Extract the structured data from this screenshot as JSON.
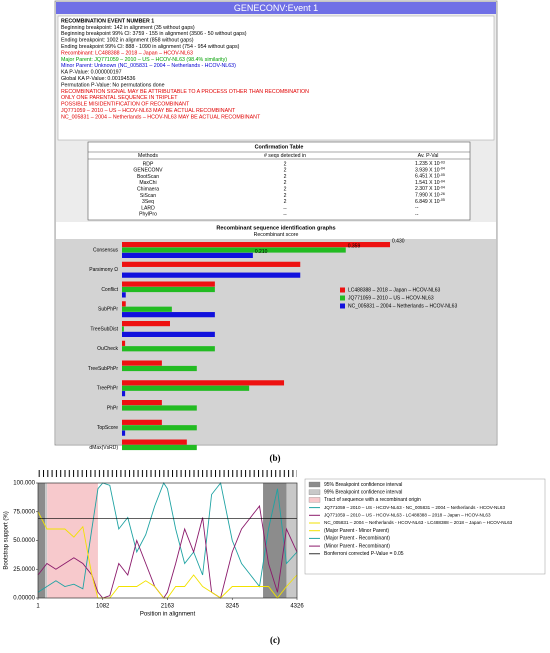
{
  "window": {
    "title": "GENECONV:Event 1",
    "info_lines": [
      {
        "text": "RECOMBINATION EVENT NUMBER 1",
        "color": "#000000",
        "bold": true
      },
      {
        "text": "Beginning breakpoint: 142 in alignment (35 without gaps)",
        "color": "#000000"
      },
      {
        "text": "Beginning breakpoint 99% CI: 3759 - 155 in alignment (3506 - 50 without gaps)",
        "color": "#000000"
      },
      {
        "text": "Ending breakpoint: 1002 in alignment (858 without gaps)",
        "color": "#000000"
      },
      {
        "text": "Ending breakpoint 99% CI: 888 - 1090 in alignment (754 - 954 without gaps)",
        "color": "#000000"
      },
      {
        "text": "Recombinant: LC488388 – 2018 – Japan – HCOV-NL63",
        "color": "#e00000"
      },
      {
        "text": "Major Parent: JQ771059 – 2010 – US – HCOV-NL63 (98.4% similarity)",
        "color": "#00a000"
      },
      {
        "text": "Minor Parent: Unknown (NC_005831 – 2004 – Netherlands - HCOV-NL63)",
        "color": "#0000d0"
      },
      {
        "text": "KA P-Value: 0.000000197",
        "color": "#000000"
      },
      {
        "text": "Global KA P-Value: 0.00194536",
        "color": "#000000"
      },
      {
        "text": "Permutation P-Value: No permutations done",
        "color": "#000000"
      },
      {
        "text": "RECOMBINATION SIGNAL MAY BE ATTRIBUTABLE TO A PROCESS OTHER THAN RECOMBINATION",
        "color": "#e00000"
      },
      {
        "text": "ONLY ONE PARENTAL SEQUENCE IN TRIPLET",
        "color": "#e00000"
      },
      {
        "text": "POSSIBLE MISIDENTIFICATION OF RECOMBINANT",
        "color": "#e00000"
      },
      {
        "text": "JQ771059 – 2010 – US – HCOV-NL63 MAY BE ACTUAL RECOMBINANT",
        "color": "#e00000"
      },
      {
        "text": "NC_005831 – 2004 – Netherlands – HCOV-NL63 MAY BE ACTUAL RECOMBINANT",
        "color": "#e00000"
      }
    ],
    "confirmation_table": {
      "title": "Confirmation Table",
      "headers": [
        "Methods",
        "# seqs detected in",
        "Av. P-Val"
      ],
      "rows": [
        {
          "method": "RDP",
          "count": 2,
          "p": "1.235 X 10",
          "exp": "-03"
        },
        {
          "method": "GENECONV",
          "count": 2,
          "p": "3.939 X 10",
          "exp": "-04"
        },
        {
          "method": "BootScan",
          "count": 2,
          "p": "6.451 X 10",
          "exp": "-05"
        },
        {
          "method": "MaxChi",
          "count": 2,
          "p": "1.541 X 10",
          "exp": "-04"
        },
        {
          "method": "Chimaera",
          "count": 2,
          "p": "2.307 X 10",
          "exp": "-04"
        },
        {
          "method": "SiScan",
          "count": 2,
          "p": "7.990 X 10",
          "exp": "-26"
        },
        {
          "method": "3Seq",
          "count": 2,
          "p": "6.849 X 10",
          "exp": "-05"
        },
        {
          "method": "LARD",
          "count": "--",
          "p": "--"
        },
        {
          "method": "PhylPro",
          "count": "--",
          "p": "--"
        }
      ]
    }
  },
  "chart_data": [
    {
      "type": "bar",
      "orientation": "horizontal",
      "title": "Recombinant sequence identification graphs",
      "subtitle": "Recombinant score",
      "categories": [
        "Consensus",
        "Parsimony Ω",
        "Conflict",
        "SubPhPr",
        "TreeSubDist",
        "OuCheck",
        "TreeSubPhPr",
        "TreePhPr",
        "PhPr",
        "TopScore",
        "dMax(VsRD)"
      ],
      "series": [
        {
          "name": "LC488388 – 2018 – Japan – HCOV-NL63",
          "color": "#ee1111",
          "values": [
            0.43,
            0.286,
            0.149,
            0.006,
            0.077,
            0.005,
            0.064,
            0.26,
            0.064,
            0.064,
            0.104
          ],
          "value_labels": [
            "0.430",
            null,
            null,
            null,
            null,
            null,
            null,
            null,
            null,
            null,
            null
          ]
        },
        {
          "name": "JQ771059 – 2010 – US – HCOV-NL63",
          "color": "#22bb22",
          "values": [
            0.359,
            0,
            0.149,
            0.08,
            0.003,
            0.149,
            0.12,
            0.204,
            0.12,
            0.12,
            0.12
          ],
          "value_labels": [
            "0.359",
            null,
            null,
            null,
            null,
            null,
            null,
            null,
            null,
            null,
            null
          ]
        },
        {
          "name": "NC_005831 – 2004 – Netherlands – HCOV-NL63",
          "color": "#1111dd",
          "values": [
            0.21,
            0.286,
            0.006,
            0.149,
            0.149,
            0,
            0,
            0.005,
            0,
            0.005,
            0
          ],
          "value_labels": [
            "0.210",
            null,
            null,
            null,
            null,
            null,
            null,
            null,
            null,
            null,
            null
          ]
        }
      ]
    },
    {
      "type": "line",
      "xlabel": "Position in alignment",
      "ylabel": "Bootstrap support (%)",
      "x": [
        1,
        150,
        300,
        450,
        600,
        750,
        900,
        1002,
        1082,
        1200,
        1350,
        1500,
        1650,
        1800,
        1950,
        2100,
        2163,
        2300,
        2450,
        2600,
        2750,
        2900,
        3050,
        3245,
        3400,
        3550,
        3700,
        3850,
        4000,
        4150,
        4326
      ],
      "xlim": [
        1,
        4326
      ],
      "xticks": [
        1,
        1082,
        2163,
        3245,
        4326
      ],
      "ylim": [
        0,
        100
      ],
      "yticks": [
        {
          "value": 0,
          "label": "0.00000"
        },
        {
          "value": 25,
          "label": "25.0000"
        },
        {
          "value": 50,
          "label": "50.0000"
        },
        {
          "value": 75,
          "label": "75.0000"
        },
        {
          "value": 100,
          "label": "100.000"
        }
      ],
      "regions": [
        {
          "label": "95% Breakpoint confidence interval",
          "color": "#8c8c8c",
          "spans": [
            [
              1,
              120
            ],
            [
              3759,
              4150
            ]
          ]
        },
        {
          "label": "99% Breakpoint confidence interval",
          "color": "#c8c8c8",
          "spans": [
            [
              120,
              155
            ],
            [
              4150,
              4326
            ]
          ]
        },
        {
          "label": "Tract of sequence with a recombinant origin",
          "color": "#f7c9cc",
          "spans": [
            [
              155,
              1002
            ]
          ]
        }
      ],
      "series": [
        {
          "name": "JQ771059 – 2010 – US - HCOV-NL63 - NC_005831 – 2004 – Netherlands - HCOV-NL63",
          "color": "#1fa3a3",
          "values": [
            5,
            10,
            15,
            10,
            12,
            8,
            60,
            95,
            100,
            98,
            60,
            70,
            40,
            55,
            80,
            100,
            95,
            60,
            30,
            40,
            20,
            90,
            100,
            50,
            30,
            20,
            10,
            60,
            95,
            30,
            40
          ]
        },
        {
          "name": "JQ771059 – 2010 – US - HCOV-NL63 - LC488388 – 2018 – Japan – HCOV-NL63",
          "color": "#8b1a6b",
          "values": [
            20,
            30,
            25,
            30,
            35,
            30,
            20,
            5,
            0,
            2,
            30,
            20,
            50,
            30,
            10,
            0,
            5,
            30,
            60,
            40,
            70,
            5,
            0,
            40,
            60,
            70,
            80,
            30,
            5,
            60,
            40
          ]
        },
        {
          "name": "NC_005831 – 2004 – Netherlands - HCOV-NL63 - LC488388 – 2018 – Japan – HCOV-NL63",
          "color": "#f2e200",
          "values": [
            75,
            60,
            60,
            60,
            53,
            62,
            20,
            0,
            0,
            0,
            10,
            10,
            10,
            15,
            10,
            0,
            0,
            10,
            10,
            20,
            10,
            5,
            0,
            10,
            10,
            10,
            10,
            10,
            0,
            10,
            20
          ]
        }
      ],
      "legend_notes": [
        {
          "label": "(Major Parent - Minor Parent)",
          "color": "#f2e200"
        },
        {
          "label": "(Major Parent - Recombinant)",
          "color": "#1fa3a3"
        },
        {
          "label": "(Minor Parent - Recombinant)",
          "color": "#8b1a6b"
        }
      ],
      "threshold": {
        "label": "Bonferroni corrected P-Value = 0.05",
        "value": 69,
        "color": "#000000"
      }
    }
  ],
  "panel_labels": [
    "(b)",
    "(c)"
  ]
}
